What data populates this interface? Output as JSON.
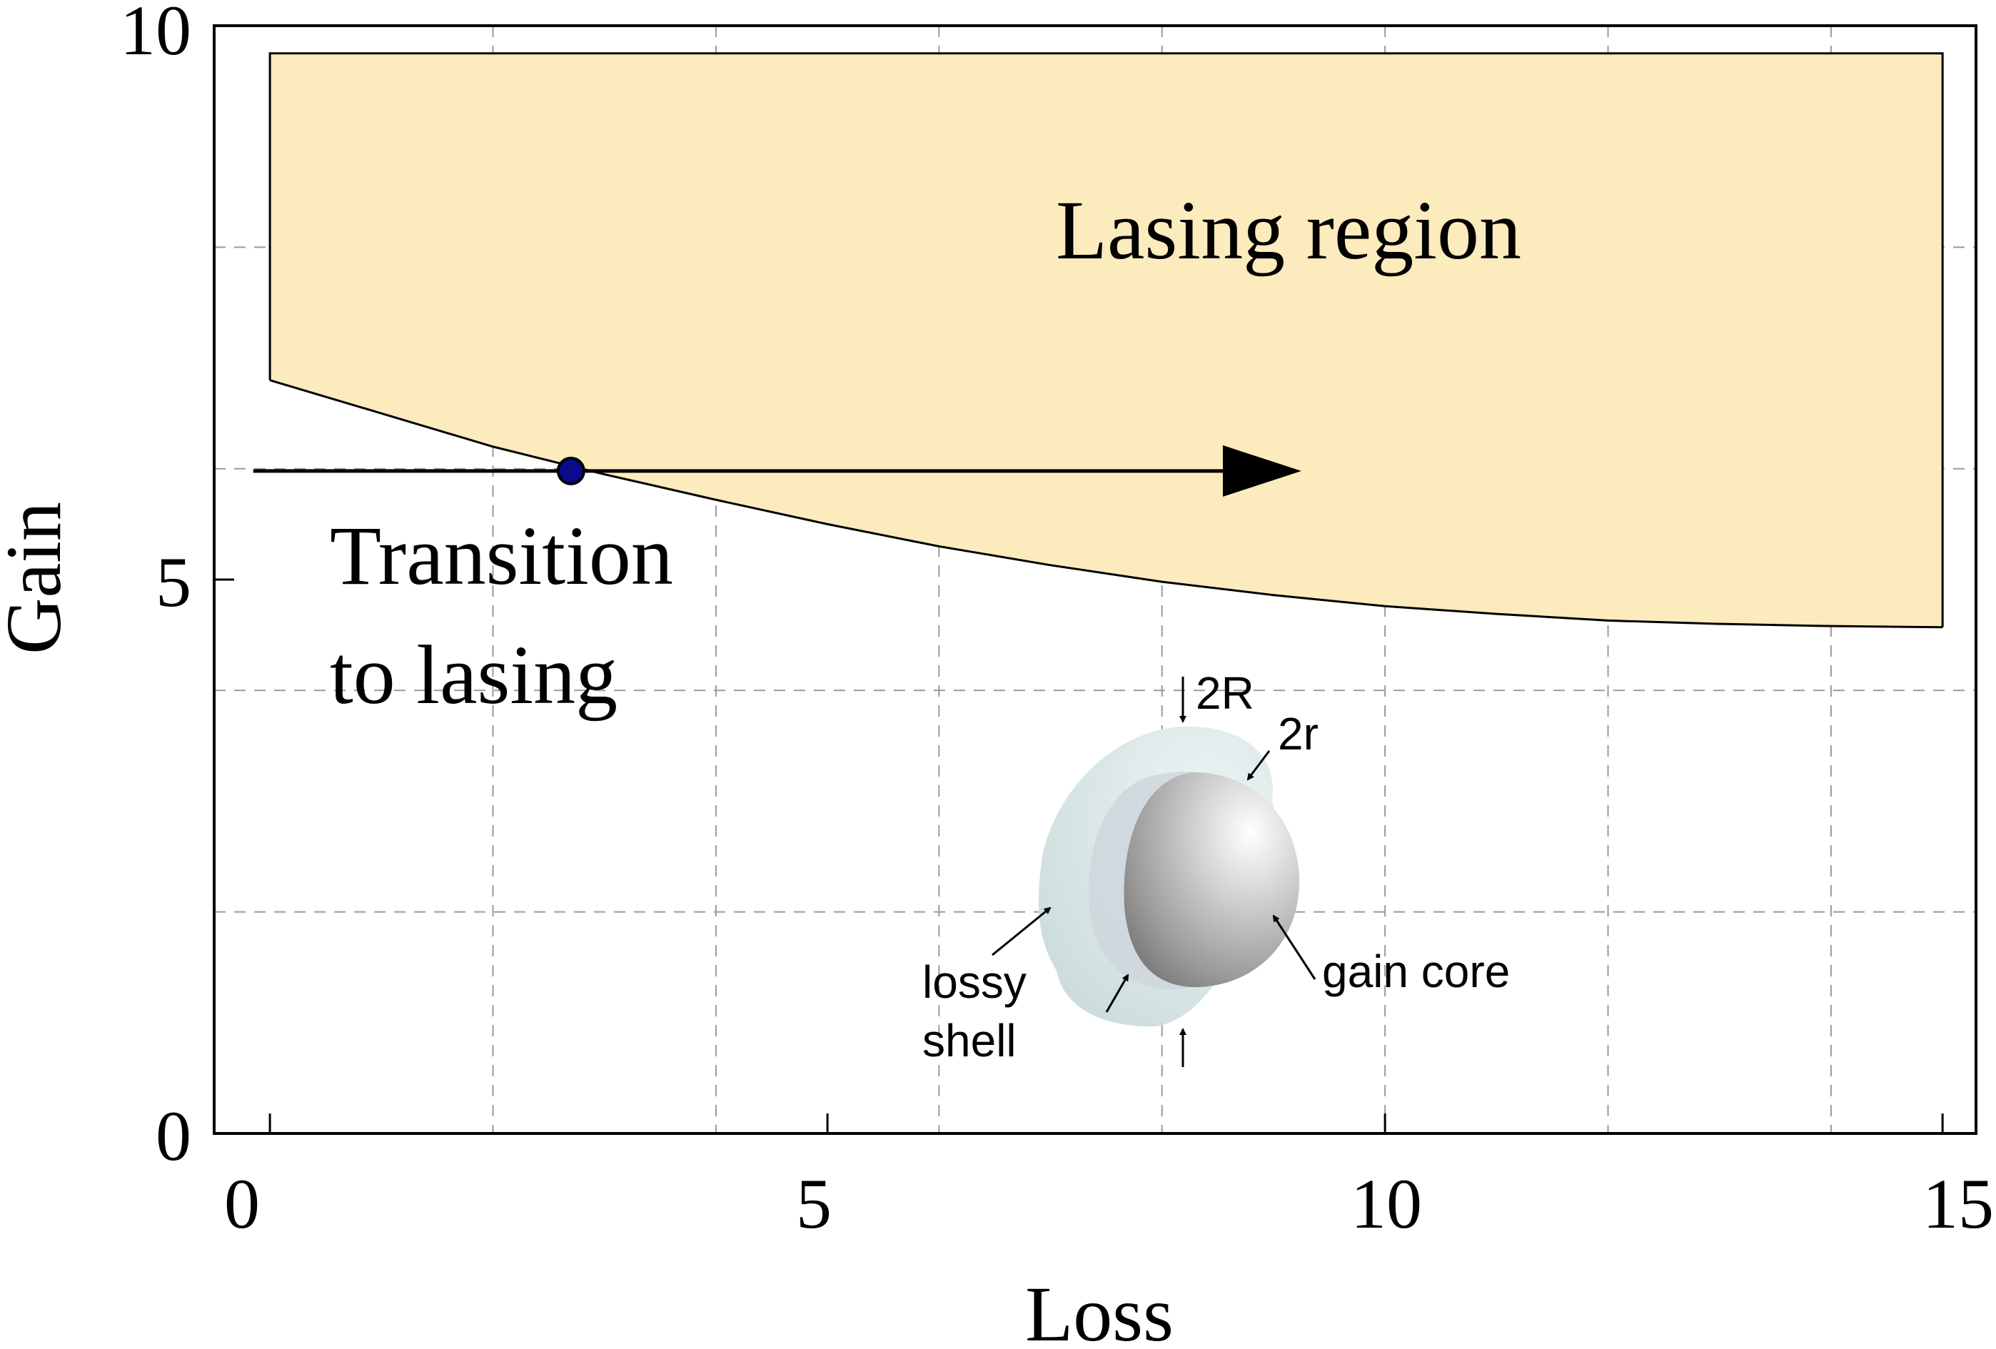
{
  "chart_data": {
    "type": "area",
    "xlabel": "Loss",
    "ylabel": "Gain",
    "xlim": [
      -0.5,
      15.3
    ],
    "ylim": [
      0,
      10
    ],
    "xticks": [
      "0",
      "5",
      "10",
      "15"
    ],
    "yticks": [
      "0",
      "5",
      "10"
    ],
    "grid": true,
    "threshold_curve": {
      "x": [
        0,
        1,
        2,
        3,
        4,
        5,
        6,
        7,
        8,
        9,
        10,
        11,
        12,
        13,
        14,
        15
      ],
      "y": [
        6.8,
        6.5,
        6.2,
        5.95,
        5.72,
        5.5,
        5.3,
        5.13,
        4.98,
        4.86,
        4.76,
        4.69,
        4.63,
        4.6,
        4.58,
        4.57
      ]
    },
    "lasing_region": {
      "label": "Lasing region",
      "fill_color": "#fcebbc",
      "upper_gain": 9.75
    },
    "transition": {
      "label_line1": "Transition",
      "label_line2": "to lasing",
      "point": {
        "x": 2.7,
        "y": 5.98
      },
      "arrow_start_x": -0.15,
      "arrow_end_x": 9.25,
      "point_color": "#0a0a8c"
    },
    "inset": {
      "labels": {
        "outer_diameter": "2R",
        "inner_diameter": "2r",
        "shell_line1": "lossy",
        "shell_line2": "shell",
        "core": "gain core"
      },
      "shell_color": "#d6e3e3",
      "core_color": "#a6a6a6"
    }
  }
}
